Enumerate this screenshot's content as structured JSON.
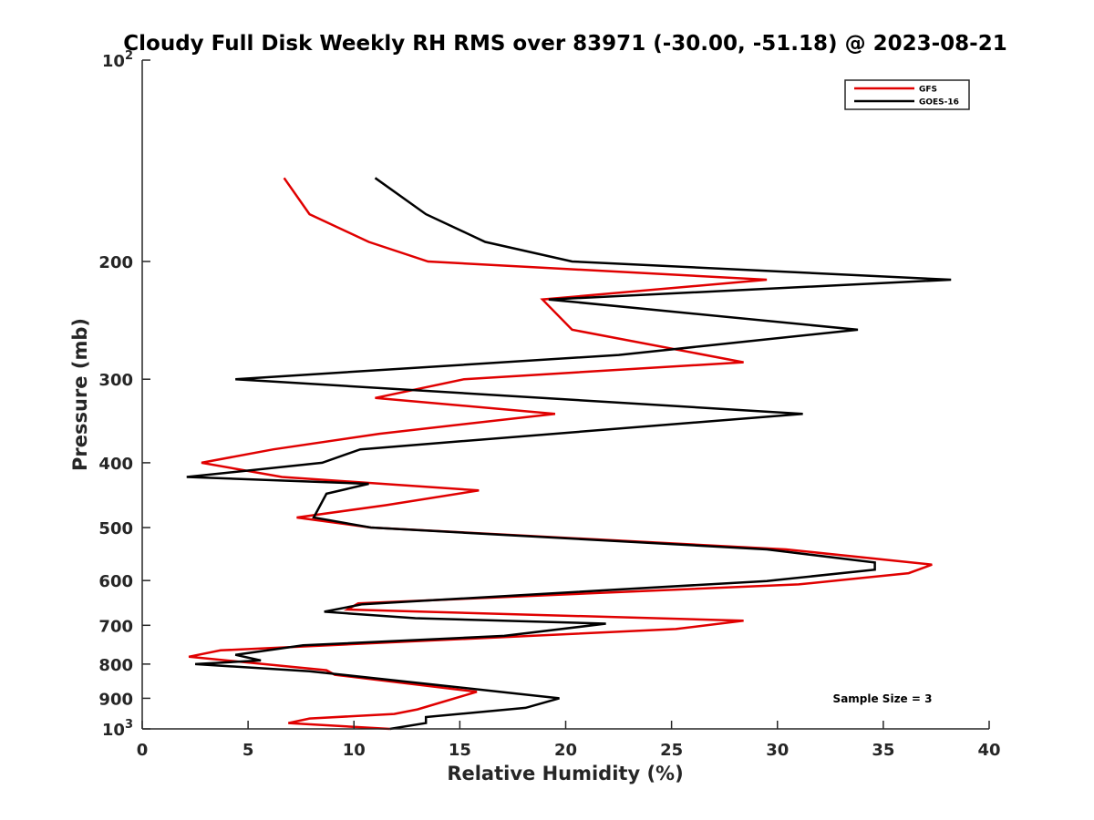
{
  "chart_data": {
    "type": "line",
    "title": "Cloudy Full Disk Weekly RH RMS over 83971 (-30.00, -51.18) @ 2023-08-21",
    "xlabel": "Relative Humidity (%)",
    "ylabel": "Pressure (mb)",
    "xlim": [
      0,
      40
    ],
    "ylim": [
      100,
      1000
    ],
    "yscale": "log",
    "y_reversed": true,
    "grid": false,
    "legend_position": "top-right",
    "x_ticks": [
      "0",
      "5",
      "10",
      "15",
      "20",
      "25",
      "30",
      "35",
      "40"
    ],
    "x_tick_values": [
      0,
      5,
      10,
      15,
      20,
      25,
      30,
      35,
      40
    ],
    "y_ticks": [
      {
        "value": 100,
        "base": "10",
        "exp": "2"
      },
      {
        "value": 200,
        "label": "200"
      },
      {
        "value": 300,
        "label": "300"
      },
      {
        "value": 400,
        "label": "400"
      },
      {
        "value": 500,
        "label": "500"
      },
      {
        "value": 600,
        "label": "600"
      },
      {
        "value": 700,
        "label": "700"
      },
      {
        "value": 800,
        "label": "800"
      },
      {
        "value": 900,
        "label": "900"
      },
      {
        "value": 1000,
        "base": "10",
        "exp": "3"
      }
    ],
    "series": [
      {
        "name": "GFS",
        "color": "#e00000",
        "points": [
          [
            6.7,
            150
          ],
          [
            7.9,
            170
          ],
          [
            10.7,
            187
          ],
          [
            13.5,
            200
          ],
          [
            29.5,
            213
          ],
          [
            18.9,
            228
          ],
          [
            20.3,
            253
          ],
          [
            28.4,
            283
          ],
          [
            15.2,
            300
          ],
          [
            11.0,
            320
          ],
          [
            19.5,
            338
          ],
          [
            11.2,
            362
          ],
          [
            6.2,
            382
          ],
          [
            2.8,
            400
          ],
          [
            6.6,
            420
          ],
          [
            15.9,
            440
          ],
          [
            11.5,
            463
          ],
          [
            7.3,
            483
          ],
          [
            10.8,
            500
          ],
          [
            30.4,
            539
          ],
          [
            37.3,
            568
          ],
          [
            36.2,
            585
          ],
          [
            31.0,
            608
          ],
          [
            10.2,
            649
          ],
          [
            9.7,
            663
          ],
          [
            28.4,
            689
          ],
          [
            25.2,
            709
          ],
          [
            3.7,
            763
          ],
          [
            2.2,
            780
          ],
          [
            8.7,
            817
          ],
          [
            9.1,
            830
          ],
          [
            15.8,
            880
          ],
          [
            13.0,
            935
          ],
          [
            11.9,
            950
          ],
          [
            7.9,
            965
          ],
          [
            6.9,
            980
          ],
          [
            11.7,
            1000
          ]
        ]
      },
      {
        "name": "GOES-16",
        "color": "#000000",
        "points": [
          [
            11.0,
            150
          ],
          [
            13.4,
            170
          ],
          [
            16.2,
            187
          ],
          [
            20.3,
            200
          ],
          [
            38.2,
            213
          ],
          [
            19.2,
            228
          ],
          [
            33.8,
            253
          ],
          [
            22.5,
            276
          ],
          [
            4.4,
            300
          ],
          [
            31.2,
            338
          ],
          [
            10.3,
            382
          ],
          [
            8.5,
            400
          ],
          [
            2.1,
            420
          ],
          [
            10.7,
            430
          ],
          [
            8.7,
            445
          ],
          [
            8.1,
            483
          ],
          [
            10.8,
            500
          ],
          [
            29.5,
            539
          ],
          [
            34.6,
            564
          ],
          [
            34.6,
            578
          ],
          [
            29.5,
            601
          ],
          [
            10.4,
            651
          ],
          [
            8.6,
            668
          ],
          [
            12.9,
            683
          ],
          [
            21.9,
            696
          ],
          [
            17.1,
            726
          ],
          [
            7.6,
            750
          ],
          [
            4.4,
            775
          ],
          [
            5.6,
            790
          ],
          [
            2.5,
            800
          ],
          [
            7.9,
            820
          ],
          [
            14.4,
            863
          ],
          [
            19.7,
            900
          ],
          [
            18.1,
            930
          ],
          [
            13.4,
            960
          ],
          [
            13.4,
            980
          ],
          [
            11.7,
            1000
          ]
        ]
      }
    ],
    "annotations": [
      "Sample Size = 3"
    ]
  }
}
